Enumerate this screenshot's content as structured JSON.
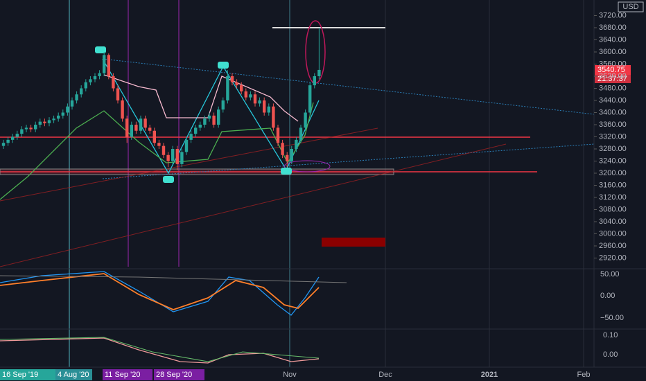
{
  "chart_data": {
    "type": "candlestick",
    "currency": "USD",
    "last_price_label": "3540.75",
    "countdown": "21:37:37",
    "up_color": "#26a69a",
    "down_color": "#ef5350",
    "ylim": [
      2880,
      3760
    ],
    "yticks": [
      {
        "value": 2920,
        "label": "2920.00"
      },
      {
        "value": 2960,
        "label": "2960.00"
      },
      {
        "value": 3000,
        "label": "3000.00"
      },
      {
        "value": 3040,
        "label": "3040.00"
      },
      {
        "value": 3080,
        "label": "3080.00"
      },
      {
        "value": 3120,
        "label": "3120.00"
      },
      {
        "value": 3160,
        "label": "3160.00"
      },
      {
        "value": 3200,
        "label": "3200.00"
      },
      {
        "value": 3240,
        "label": "3240.00"
      },
      {
        "value": 3280,
        "label": "3280.00"
      },
      {
        "value": 3320,
        "label": "3320.00"
      },
      {
        "value": 3360,
        "label": "3360.00"
      },
      {
        "value": 3400,
        "label": "3400.00"
      },
      {
        "value": 3440,
        "label": "3440.00"
      },
      {
        "value": 3480,
        "label": "3480.00"
      },
      {
        "value": 3520,
        "label": "3520.00"
      },
      {
        "value": 3560,
        "label": "3560.00"
      },
      {
        "value": 3600,
        "label": "3600.00"
      },
      {
        "value": 3640,
        "label": "3640.00"
      },
      {
        "value": 3680,
        "label": "3680.00"
      },
      {
        "value": 3720,
        "label": "3720.00"
      }
    ],
    "open": [
      3290,
      3300,
      3310,
      3320,
      3330,
      3345,
      3350,
      3345,
      3360,
      3370,
      3365,
      3375,
      3380,
      3390,
      3400,
      3420,
      3440,
      3460,
      3480,
      3500,
      3510,
      3520,
      3530,
      3590,
      3520,
      3480,
      3440,
      3380,
      3320,
      3360,
      3340,
      3380,
      3350,
      3340,
      3300,
      3290,
      3260,
      3240,
      3280,
      3230,
      3270,
      3310,
      3330,
      3350,
      3360,
      3380,
      3390,
      3360,
      3410,
      3440,
      3520,
      3500,
      3490,
      3470,
      3450,
      3460,
      3430,
      3440,
      3400,
      3420,
      3350,
      3300,
      3260,
      3240,
      3280,
      3310,
      3350,
      3400,
      3490,
      3520
    ],
    "high": [
      3310,
      3320,
      3330,
      3340,
      3355,
      3360,
      3360,
      3370,
      3380,
      3380,
      3385,
      3390,
      3400,
      3410,
      3430,
      3450,
      3470,
      3490,
      3510,
      3520,
      3530,
      3540,
      3600,
      3595,
      3530,
      3490,
      3450,
      3390,
      3370,
      3370,
      3390,
      3390,
      3360,
      3350,
      3310,
      3300,
      3270,
      3290,
      3290,
      3280,
      3320,
      3340,
      3360,
      3370,
      3390,
      3400,
      3400,
      3420,
      3450,
      3540,
      3530,
      3510,
      3500,
      3480,
      3470,
      3470,
      3450,
      3450,
      3430,
      3430,
      3360,
      3310,
      3270,
      3290,
      3320,
      3360,
      3410,
      3500,
      3530,
      3680
    ],
    "low": [
      3280,
      3290,
      3300,
      3310,
      3320,
      3335,
      3335,
      3335,
      3350,
      3355,
      3355,
      3365,
      3370,
      3380,
      3390,
      3410,
      3430,
      3450,
      3470,
      3490,
      3500,
      3510,
      3520,
      3510,
      3470,
      3430,
      3370,
      3300,
      3310,
      3330,
      3330,
      3340,
      3330,
      3290,
      3280,
      3250,
      3220,
      3230,
      3210,
      3220,
      3260,
      3300,
      3320,
      3340,
      3350,
      3370,
      3350,
      3350,
      3400,
      3430,
      3490,
      3480,
      3460,
      3440,
      3440,
      3420,
      3420,
      3390,
      3390,
      3340,
      3290,
      3250,
      3220,
      3230,
      3270,
      3300,
      3340,
      3390,
      3480,
      3510
    ],
    "close": [
      3300,
      3310,
      3320,
      3330,
      3345,
      3350,
      3345,
      3360,
      3370,
      3365,
      3375,
      3380,
      3390,
      3400,
      3420,
      3440,
      3460,
      3480,
      3500,
      3510,
      3520,
      3530,
      3590,
      3520,
      3480,
      3440,
      3380,
      3320,
      3360,
      3340,
      3380,
      3350,
      3340,
      3300,
      3290,
      3260,
      3240,
      3280,
      3230,
      3270,
      3310,
      3330,
      3350,
      3360,
      3380,
      3390,
      3360,
      3410,
      3440,
      3520,
      3500,
      3490,
      3470,
      3450,
      3460,
      3430,
      3440,
      3400,
      3420,
      3350,
      3300,
      3260,
      3240,
      3280,
      3310,
      3350,
      3400,
      3490,
      3520,
      3540.75
    ],
    "time_labels": [
      "Nov",
      "Dec",
      "2021",
      "Feb"
    ],
    "date_markers": [
      "16 Sep '19",
      "4 Aug '20",
      "11 Sep '20",
      "28 Sep '20"
    ],
    "oscillator_labels": [
      "50.00",
      "0.00",
      "−50.00"
    ],
    "secondary_labels": [
      "0.10",
      "0.00"
    ]
  }
}
